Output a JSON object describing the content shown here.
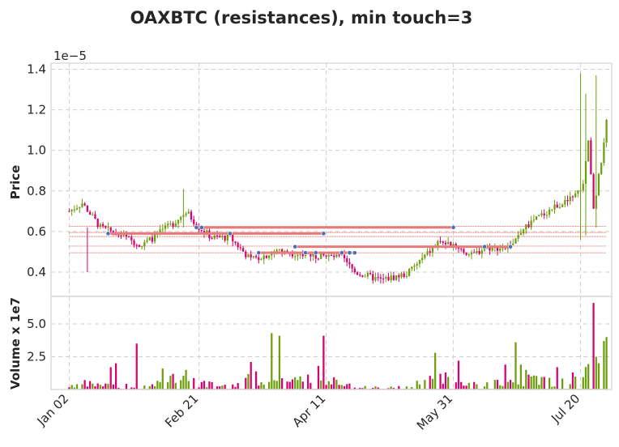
{
  "chart_data": {
    "type": "candlestick",
    "title": "OAXBTC (resistances), min touch=3",
    "price_panel": {
      "ylabel": "Price",
      "offset_text": "1e−5",
      "ylim": [
        0.28,
        1.43
      ],
      "yticks": [
        0.4,
        0.6,
        0.8,
        1.0,
        1.2,
        1.4
      ],
      "ytick_labels": [
        "0.4",
        "0.6",
        "0.8",
        "1.0",
        "1.2",
        "1.4"
      ],
      "grid": true
    },
    "volume_panel": {
      "ylabel": "Volume x 1e7",
      "ylim": [
        0,
        7.1
      ],
      "yticks": [
        2.5,
        5.0
      ],
      "ytick_labels": [
        "2.5",
        "5.0"
      ],
      "grid": true
    },
    "x_axis": {
      "range_days": [
        -7,
        209
      ],
      "ticks": [
        0,
        50,
        99,
        148,
        197
      ],
      "tick_labels": [
        "Jan 02",
        "Feb 21",
        "Apr 11",
        "May 31",
        "Jul 20"
      ]
    },
    "colors": {
      "up": "#6c9f0e",
      "down": "#d6006f",
      "resistance": "#e57b79",
      "touch_marker": "#4a6fb5"
    },
    "anchors": {
      "x": [
        0,
        5,
        12,
        20,
        28,
        40,
        45,
        50,
        55,
        62,
        70,
        80,
        90,
        97,
        105,
        110,
        120,
        130,
        138,
        142,
        148,
        155,
        160,
        170,
        175,
        182,
        188,
        192,
        195,
        198,
        200,
        202,
        205,
        207
      ],
      "price": [
        0.7,
        0.74,
        0.62,
        0.58,
        0.53,
        0.64,
        0.7,
        0.62,
        0.57,
        0.57,
        0.46,
        0.5,
        0.49,
        0.48,
        0.47,
        0.4,
        0.36,
        0.39,
        0.49,
        0.54,
        0.54,
        0.48,
        0.52,
        0.52,
        0.62,
        0.68,
        0.73,
        0.75,
        0.78,
        0.82,
        1.05,
        0.7,
        0.95,
        1.15
      ],
      "volume": [
        0.3,
        0.5,
        0.4,
        0.3,
        0.4,
        0.8,
        1.5,
        0.5,
        0.4,
        0.2,
        1.0,
        0.8,
        0.6,
        1.2,
        0.5,
        0.3,
        0.2,
        0.3,
        0.8,
        1.0,
        0.6,
        0.4,
        0.5,
        0.6,
        0.8,
        0.7,
        0.6,
        0.9,
        0.8,
        1.0,
        1.5,
        3.0,
        2.5,
        3.5
      ]
    },
    "volume_spikes": [
      {
        "x": 16,
        "volume": 1.7
      },
      {
        "x": 18,
        "volume": 2.0
      },
      {
        "x": 26,
        "volume": 3.5
      },
      {
        "x": 36,
        "volume": 1.6
      },
      {
        "x": 45,
        "volume": 1.5
      },
      {
        "x": 70,
        "volume": 2.1
      },
      {
        "x": 78,
        "volume": 4.3
      },
      {
        "x": 81,
        "volume": 4.1
      },
      {
        "x": 89,
        "volume": 1.0
      },
      {
        "x": 96,
        "volume": 1.8
      },
      {
        "x": 98,
        "volume": 4.1
      },
      {
        "x": 141,
        "volume": 2.8
      },
      {
        "x": 145,
        "volume": 1.3
      },
      {
        "x": 150,
        "volume": 2.2
      },
      {
        "x": 168,
        "volume": 1.9
      },
      {
        "x": 172,
        "volume": 3.6
      },
      {
        "x": 174,
        "volume": 1.9
      },
      {
        "x": 176,
        "volume": 1.5
      },
      {
        "x": 188,
        "volume": 1.7
      },
      {
        "x": 194,
        "volume": 1.3
      },
      {
        "x": 202,
        "volume": 6.6
      },
      {
        "x": 203,
        "volume": 2.5
      },
      {
        "x": 204,
        "volume": 2.0
      },
      {
        "x": 206,
        "volume": 3.7
      },
      {
        "x": 207,
        "volume": 4.0
      }
    ],
    "wicks": [
      {
        "x": 7,
        "low": 0.4,
        "high": 0.62
      },
      {
        "x": 44,
        "low": 0.62,
        "high": 0.81
      },
      {
        "x": 197,
        "low": 0.56,
        "high": 1.38
      },
      {
        "x": 199,
        "low": 0.58,
        "high": 1.28
      },
      {
        "x": 203,
        "low": 0.62,
        "high": 1.37
      }
    ],
    "resistance_levels": [
      {
        "price": 0.62,
        "x_start": 49,
        "x_end": 148,
        "touches_x": [
          49,
          51,
          148
        ]
      },
      {
        "price": 0.59,
        "x_start": 15,
        "x_end": 98,
        "touches_x": [
          15,
          62,
          98
        ]
      },
      {
        "price": 0.525,
        "x_start": 87,
        "x_end": 170,
        "touches_x": [
          87,
          160,
          170
        ]
      },
      {
        "price": 0.495,
        "x_start": 73,
        "x_end": 110,
        "touches_x": [
          73,
          91,
          95,
          105,
          108,
          110
        ]
      }
    ],
    "resistance_band_lines": [
      0.625,
      0.595,
      0.575,
      0.528,
      0.495
    ]
  }
}
